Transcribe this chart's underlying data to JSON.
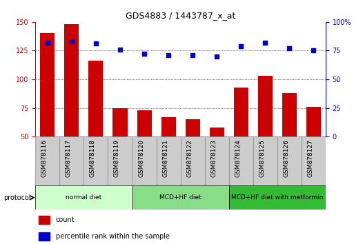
{
  "title": "GDS4883 / 1443787_x_at",
  "samples": [
    "GSM878116",
    "GSM878117",
    "GSM878118",
    "GSM878119",
    "GSM878120",
    "GSM878121",
    "GSM878122",
    "GSM878123",
    "GSM878124",
    "GSM878125",
    "GSM878126",
    "GSM878127"
  ],
  "counts": [
    140,
    148,
    116,
    75,
    73,
    67,
    65,
    58,
    93,
    103,
    88,
    76
  ],
  "percentile_ranks": [
    82,
    83,
    81,
    76,
    72,
    71,
    71,
    70,
    79,
    82,
    77,
    75
  ],
  "bar_color": "#cc0000",
  "dot_color": "#0000cc",
  "ylim_left": [
    50,
    150
  ],
  "ylim_right": [
    0,
    100
  ],
  "yticks_left": [
    50,
    75,
    100,
    125,
    150
  ],
  "yticks_right": [
    0,
    25,
    50,
    75,
    100
  ],
  "ytick_right_labels": [
    "0",
    "25",
    "50",
    "75",
    "100%"
  ],
  "groups": [
    {
      "label": "normal diet",
      "start": 0,
      "end": 4,
      "color": "#ccffcc"
    },
    {
      "label": "MCD+HF diet",
      "start": 4,
      "end": 8,
      "color": "#88dd88"
    },
    {
      "label": "MCD+HF diet with metformin",
      "start": 8,
      "end": 12,
      "color": "#33bb33"
    }
  ],
  "legend_count_label": "count",
  "legend_pct_label": "percentile rank within the sample",
  "protocol_label": "protocol",
  "background_color": "#ffffff",
  "xtick_box_color": "#cccccc",
  "xtick_box_edge": "#888888"
}
